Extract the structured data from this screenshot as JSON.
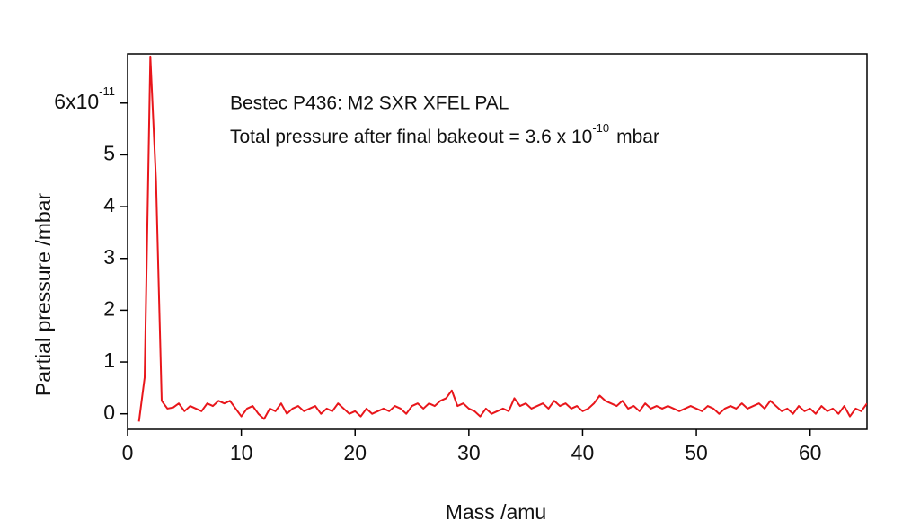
{
  "chart_data": {
    "type": "line",
    "xlabel": "Mass /amu",
    "ylabel": "Partial pressure /mbar",
    "annotations": [
      {
        "text": "Bestec P436: M2 SXR XFEL PAL"
      },
      {
        "text": "Total pressure after final bakeout = 3.6 x 10",
        "superscript": "-10",
        "suffix": "mbar"
      }
    ],
    "xlim": [
      0,
      65
    ],
    "ylim": [
      -0.3,
      6.95
    ],
    "xticks": [
      0,
      10,
      20,
      30,
      40,
      50,
      60
    ],
    "yticks": [
      0,
      1,
      2,
      3,
      4,
      5,
      {
        "value": 6,
        "label": "6x10",
        "exponent": "-11"
      }
    ],
    "x": [
      1.0,
      1.5,
      2.0,
      2.5,
      3.0,
      3.5,
      4.0,
      4.5,
      5.0,
      5.5,
      6.0,
      6.5,
      7.0,
      7.5,
      8.0,
      8.5,
      9.0,
      9.5,
      10.0,
      10.5,
      11.0,
      11.5,
      12.0,
      12.5,
      13.0,
      13.5,
      14.0,
      14.5,
      15.0,
      15.5,
      16.0,
      16.5,
      17.0,
      17.5,
      18.0,
      18.5,
      19.0,
      19.5,
      20.0,
      20.5,
      21.0,
      21.5,
      22.0,
      22.5,
      23.0,
      23.5,
      24.0,
      24.5,
      25.0,
      25.5,
      26.0,
      26.5,
      27.0,
      27.5,
      28.0,
      28.5,
      29.0,
      29.5,
      30.0,
      30.5,
      31.0,
      31.5,
      32.0,
      32.5,
      33.0,
      33.5,
      34.0,
      34.5,
      35.0,
      35.5,
      36.0,
      36.5,
      37.0,
      37.5,
      38.0,
      38.5,
      39.0,
      39.5,
      40.0,
      40.5,
      41.0,
      41.5,
      42.0,
      42.5,
      43.0,
      43.5,
      44.0,
      44.5,
      45.0,
      45.5,
      46.0,
      46.5,
      47.0,
      47.5,
      48.0,
      48.5,
      49.0,
      49.5,
      50.0,
      50.5,
      51.0,
      51.5,
      52.0,
      52.5,
      53.0,
      53.5,
      54.0,
      54.5,
      55.0,
      55.5,
      56.0,
      56.5,
      57.0,
      57.5,
      58.0,
      58.5,
      59.0,
      59.5,
      60.0,
      60.5,
      61.0,
      61.5,
      62.0,
      62.5,
      63.0,
      63.5,
      64.0,
      64.5,
      65.0
    ],
    "series": [
      {
        "color": "#e8161b",
        "values": [
          -0.15,
          0.7,
          6.9,
          4.5,
          0.25,
          0.1,
          0.12,
          0.2,
          0.05,
          0.15,
          0.1,
          0.05,
          0.2,
          0.15,
          0.25,
          0.2,
          0.25,
          0.1,
          -0.05,
          0.1,
          0.15,
          0.0,
          -0.1,
          0.1,
          0.05,
          0.2,
          0.0,
          0.1,
          0.15,
          0.05,
          0.1,
          0.15,
          0.0,
          0.1,
          0.05,
          0.2,
          0.1,
          0.0,
          0.05,
          -0.05,
          0.1,
          0.0,
          0.05,
          0.1,
          0.05,
          0.15,
          0.1,
          0.0,
          0.15,
          0.2,
          0.1,
          0.2,
          0.15,
          0.25,
          0.3,
          0.45,
          0.15,
          0.2,
          0.1,
          0.05,
          -0.05,
          0.1,
          0.0,
          0.05,
          0.1,
          0.05,
          0.3,
          0.15,
          0.2,
          0.1,
          0.15,
          0.2,
          0.1,
          0.25,
          0.15,
          0.2,
          0.1,
          0.15,
          0.05,
          0.1,
          0.2,
          0.35,
          0.25,
          0.2,
          0.15,
          0.25,
          0.1,
          0.15,
          0.05,
          0.2,
          0.1,
          0.15,
          0.1,
          0.15,
          0.1,
          0.05,
          0.1,
          0.15,
          0.1,
          0.05,
          0.15,
          0.1,
          0.0,
          0.1,
          0.15,
          0.1,
          0.2,
          0.1,
          0.15,
          0.2,
          0.1,
          0.25,
          0.15,
          0.05,
          0.1,
          0.0,
          0.15,
          0.05,
          0.1,
          0.0,
          0.15,
          0.05,
          0.1,
          0.0,
          0.15,
          -0.05,
          0.1,
          0.05,
          0.2
        ]
      }
    ]
  }
}
